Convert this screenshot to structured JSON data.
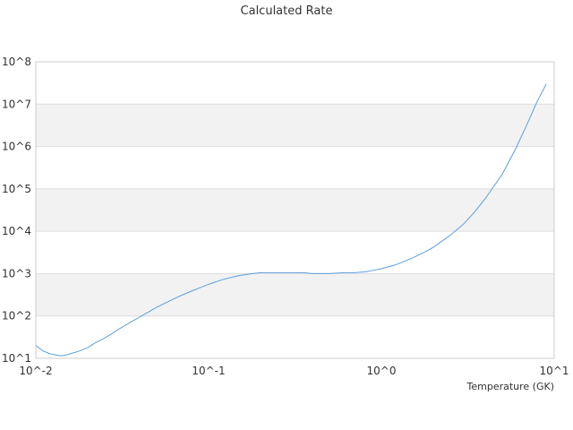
{
  "chart_data": {
    "type": "line",
    "title": "Calculated Rate",
    "xlabel": "Temperature (GK)",
    "ylabel": "",
    "x_scale": "log",
    "y_scale": "log",
    "xlim": [
      0.01,
      10
    ],
    "ylim": [
      10,
      100000000
    ],
    "x_tick_labels": [
      "10^-2",
      "10^-1",
      "10^0",
      "10^1"
    ],
    "y_tick_labels": [
      "10^1",
      "10^2",
      "10^3",
      "10^4",
      "10^5",
      "10^6",
      "10^7",
      "10^8"
    ],
    "grid": "alternating horizontal bands",
    "legend": "none",
    "series": [
      {
        "color": "#5a9fe0",
        "x": [
          0.01,
          0.011,
          0.012,
          0.013,
          0.014,
          0.015,
          0.016,
          0.018,
          0.02,
          0.022,
          0.025,
          0.028,
          0.03,
          0.035,
          0.04,
          0.045,
          0.05,
          0.06,
          0.07,
          0.08,
          0.09,
          0.1,
          0.12,
          0.15,
          0.18,
          0.2,
          0.25,
          0.3,
          0.35,
          0.4,
          0.45,
          0.5,
          0.6,
          0.7,
          0.8,
          0.9,
          1.0,
          1.2,
          1.5,
          1.8,
          2.0,
          2.5,
          3.0,
          3.5,
          4.0,
          5.0,
          6.0,
          7.0,
          8.0,
          9.0
        ],
        "y": [
          20,
          15,
          13,
          12,
          11.5,
          12,
          13,
          15,
          18,
          23,
          30,
          40,
          48,
          70,
          95,
          125,
          160,
          230,
          310,
          390,
          470,
          560,
          720,
          900,
          1000,
          1050,
          1050,
          1050,
          1050,
          1000,
          1000,
          1000,
          1050,
          1050,
          1100,
          1200,
          1300,
          1600,
          2300,
          3300,
          4200,
          8000,
          15000,
          30000,
          60000,
          220000,
          900000,
          3500000,
          12000000,
          30000000
        ]
      }
    ]
  }
}
